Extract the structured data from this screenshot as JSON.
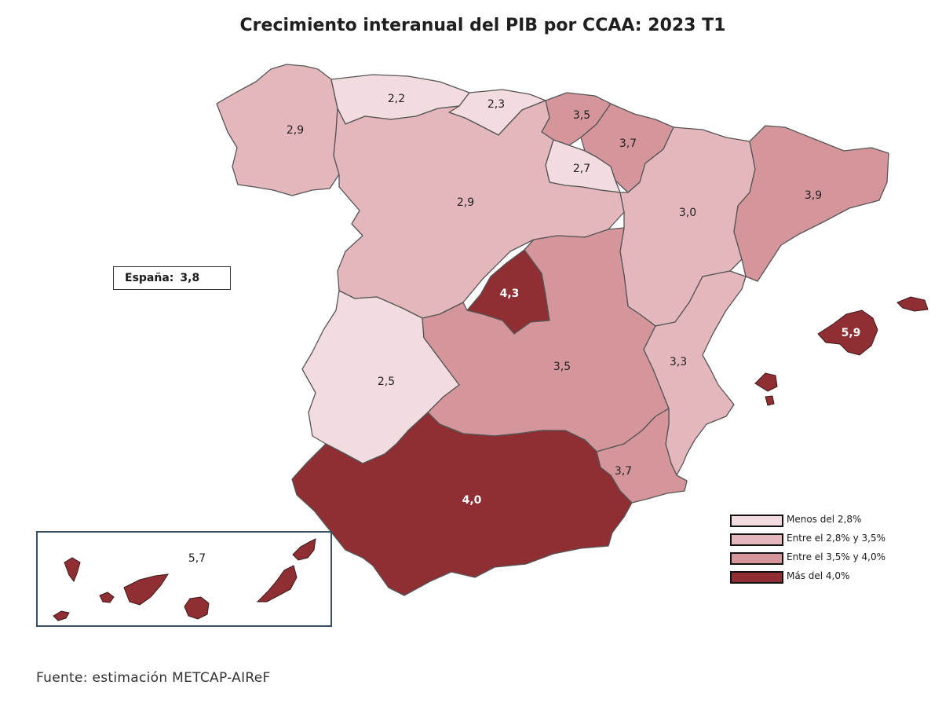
{
  "title": "Crecimiento interanual del PIB por CCAA: 2023 T1",
  "spain": {
    "label": "España:",
    "value": "3,8"
  },
  "regions": {
    "galicia": "2,9",
    "asturias": "2,2",
    "cantabria": "2,3",
    "pais_vasco": "3,5",
    "navarra": "3,7",
    "la_rioja": "2,7",
    "castilla_leon": "2,9",
    "aragon": "3,0",
    "cataluna": "3,9",
    "madrid": "4,3",
    "extremadura": "2,5",
    "castilla_la_mancha": "3,5",
    "valencia": "3,3",
    "murcia": "3,7",
    "andalucia": "4,0",
    "baleares": "5,9",
    "canarias": "5,7"
  },
  "legend": [
    {
      "label": "Menos del 2,8%",
      "color": "#f3dcdf"
    },
    {
      "label": "Entre el 2,8% y 3,5%",
      "color": "#e3b7bb"
    },
    {
      "label": "Entre el 3,5% y 4,0%",
      "color": "#d5969b"
    },
    {
      "label": "Más del 4,0%",
      "color": "#8f2e33"
    }
  ],
  "source": "Fuente: estimación METCAP-AIReF"
}
